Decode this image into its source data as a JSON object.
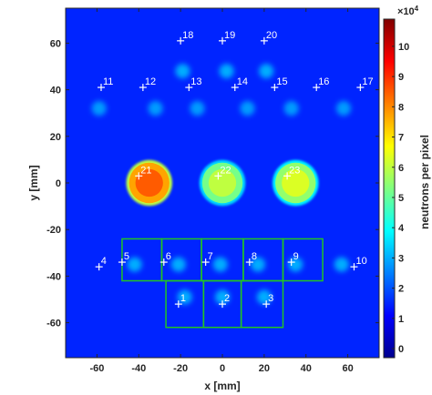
{
  "chart_data": {
    "type": "heatmap",
    "xlabel": "x [mm]",
    "ylabel": "y [mm]",
    "colorbar_label": "neutrons per pixel",
    "colorbar_exponent_base": "×10",
    "colorbar_exponent": "4",
    "xlim": [
      -75,
      75
    ],
    "ylim": [
      -75,
      75
    ],
    "xticks": [
      -60,
      -40,
      -20,
      0,
      20,
      40,
      60
    ],
    "yticks": [
      -60,
      -40,
      -20,
      0,
      20,
      40,
      60
    ],
    "cticks": [
      0,
      1,
      2,
      3,
      4,
      5,
      6,
      7,
      8,
      9,
      10
    ],
    "clim": [
      -0.3,
      10.9
    ],
    "background_value": 1.5,
    "blobs": [
      {
        "x": -35,
        "y": 0,
        "r": 11,
        "value": 8.5
      },
      {
        "x": 0,
        "y": 0,
        "r": 11,
        "value": 6
      },
      {
        "x": 35,
        "y": 0,
        "r": 11,
        "value": 6.3
      }
    ],
    "spots": [
      {
        "x": -42,
        "y": -35,
        "value": 3
      },
      {
        "x": -21,
        "y": -35,
        "value": 3
      },
      {
        "x": -1,
        "y": -35,
        "value": 3
      },
      {
        "x": 17,
        "y": -35,
        "value": 3
      },
      {
        "x": 35,
        "y": -35,
        "value": 3
      },
      {
        "x": 57,
        "y": -35,
        "value": 3
      },
      {
        "x": -18,
        "y": -49,
        "value": 3
      },
      {
        "x": 0,
        "y": -49,
        "value": 3
      },
      {
        "x": 20,
        "y": -49,
        "value": 3
      },
      {
        "x": -59,
        "y": 32,
        "value": 2.8
      },
      {
        "x": -32,
        "y": 32,
        "value": 2.8
      },
      {
        "x": -12,
        "y": 32,
        "value": 2.8
      },
      {
        "x": 12,
        "y": 32,
        "value": 2.8
      },
      {
        "x": 33,
        "y": 32,
        "value": 2.8
      },
      {
        "x": 58,
        "y": 32,
        "value": 2.8
      },
      {
        "x": -19,
        "y": 48,
        "value": 3
      },
      {
        "x": 2,
        "y": 48,
        "value": 3
      },
      {
        "x": 21,
        "y": 48,
        "value": 3
      }
    ],
    "markers": [
      {
        "label": "1",
        "x": -21,
        "y": -52
      },
      {
        "label": "2",
        "x": 0,
        "y": -52
      },
      {
        "label": "3",
        "x": 21,
        "y": -52
      },
      {
        "label": "4",
        "x": -59,
        "y": -36
      },
      {
        "label": "5",
        "x": -48,
        "y": -34
      },
      {
        "label": "6",
        "x": -28,
        "y": -34
      },
      {
        "label": "7",
        "x": -8,
        "y": -34
      },
      {
        "label": "8",
        "x": 13,
        "y": -34
      },
      {
        "label": "9",
        "x": 33,
        "y": -34
      },
      {
        "label": "10",
        "x": 63,
        "y": -36
      },
      {
        "label": "11",
        "x": -58,
        "y": 41
      },
      {
        "label": "12",
        "x": -38,
        "y": 41
      },
      {
        "label": "13",
        "x": -16,
        "y": 41
      },
      {
        "label": "14",
        "x": 6,
        "y": 41
      },
      {
        "label": "15",
        "x": 25,
        "y": 41
      },
      {
        "label": "16",
        "x": 45,
        "y": 41
      },
      {
        "label": "17",
        "x": 66,
        "y": 41
      },
      {
        "label": "18",
        "x": -20,
        "y": 61
      },
      {
        "label": "19",
        "x": 0,
        "y": 61
      },
      {
        "label": "20",
        "x": 20,
        "y": 61
      },
      {
        "label": "21",
        "x": -40,
        "y": 3
      },
      {
        "label": "22",
        "x": -2,
        "y": 3
      },
      {
        "label": "23",
        "x": 31,
        "y": 3
      }
    ],
    "rois": [
      {
        "x": [
          -48,
          -29
        ],
        "y": [
          -42,
          -24
        ]
      },
      {
        "x": [
          -29,
          -10
        ],
        "y": [
          -42,
          -24
        ]
      },
      {
        "x": [
          -10,
          10
        ],
        "y": [
          -42,
          -24
        ]
      },
      {
        "x": [
          10,
          29
        ],
        "y": [
          -42,
          -24
        ]
      },
      {
        "x": [
          29,
          48
        ],
        "y": [
          -42,
          -24
        ]
      },
      {
        "x": [
          -27,
          -9
        ],
        "y": [
          -62,
          -42
        ]
      },
      {
        "x": [
          -9,
          9
        ],
        "y": [
          -62,
          -42
        ]
      },
      {
        "x": [
          9,
          29
        ],
        "y": [
          -62,
          -42
        ]
      }
    ]
  }
}
